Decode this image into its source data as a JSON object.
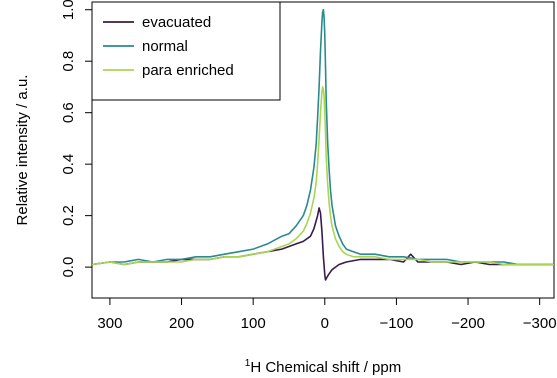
{
  "chart_data": {
    "type": "line",
    "xlabel_super": "1",
    "xlabel": "H Chemical shift / ppm",
    "ylabel": "Relative intensity / a.u.",
    "xlim": [
      325,
      -320
    ],
    "ylim": [
      -0.12,
      1.03
    ],
    "x_reversed": true,
    "grid": false,
    "legend_position": "top-left",
    "x_ticks": [
      {
        "value": 300,
        "label": "300"
      },
      {
        "value": 200,
        "label": "200"
      },
      {
        "value": 100,
        "label": "100"
      },
      {
        "value": 0,
        "label": "0"
      },
      {
        "value": -100,
        "label": "−100"
      },
      {
        "value": -200,
        "label": "−200"
      },
      {
        "value": -300,
        "label": "−300"
      }
    ],
    "y_ticks": [
      {
        "value": 0.0,
        "label": "0.0"
      },
      {
        "value": 0.2,
        "label": "0.2"
      },
      {
        "value": 0.4,
        "label": "0.4"
      },
      {
        "value": 0.6,
        "label": "0.6"
      },
      {
        "value": 0.8,
        "label": "0.8"
      },
      {
        "value": 1.0,
        "label": "1.0"
      }
    ],
    "series": [
      {
        "name": "evacuated",
        "color": "#3b1a4d",
        "x": [
          325,
          300,
          280,
          260,
          240,
          220,
          200,
          180,
          160,
          140,
          120,
          100,
          80,
          60,
          40,
          30,
          20,
          15,
          10,
          8,
          6,
          4,
          2,
          0,
          -1,
          -3,
          -5,
          -10,
          -15,
          -20,
          -30,
          -50,
          -70,
          -90,
          -110,
          -120,
          -130,
          -150,
          -170,
          -190,
          -210,
          -230,
          -250,
          -270,
          -290,
          -310,
          -320
        ],
        "y": [
          0.01,
          0.02,
          0.01,
          0.02,
          0.02,
          0.02,
          0.03,
          0.03,
          0.03,
          0.04,
          0.04,
          0.05,
          0.06,
          0.07,
          0.09,
          0.1,
          0.12,
          0.15,
          0.2,
          0.23,
          0.21,
          0.14,
          0.04,
          -0.03,
          -0.05,
          -0.04,
          -0.03,
          -0.01,
          0.0,
          0.01,
          0.02,
          0.03,
          0.03,
          0.03,
          0.02,
          0.05,
          0.02,
          0.02,
          0.02,
          0.01,
          0.02,
          0.01,
          0.01,
          0.01,
          0.01,
          0.01,
          0.01
        ]
      },
      {
        "name": "normal",
        "color": "#2a8a8e",
        "x": [
          325,
          300,
          280,
          260,
          240,
          220,
          200,
          180,
          160,
          140,
          120,
          100,
          80,
          60,
          50,
          40,
          30,
          25,
          20,
          15,
          12,
          10,
          8,
          6,
          4,
          3,
          2,
          1,
          0,
          -1,
          -2,
          -4,
          -6,
          -8,
          -10,
          -15,
          -20,
          -25,
          -30,
          -40,
          -50,
          -70,
          -90,
          -110,
          -130,
          -150,
          -170,
          -190,
          -210,
          -230,
          -250,
          -270,
          -290,
          -310,
          -320
        ],
        "y": [
          0.01,
          0.02,
          0.02,
          0.03,
          0.02,
          0.03,
          0.03,
          0.04,
          0.04,
          0.05,
          0.06,
          0.07,
          0.09,
          0.12,
          0.13,
          0.16,
          0.2,
          0.24,
          0.3,
          0.39,
          0.48,
          0.58,
          0.7,
          0.84,
          0.95,
          0.99,
          1.0,
          0.97,
          0.9,
          0.78,
          0.65,
          0.48,
          0.38,
          0.3,
          0.24,
          0.16,
          0.12,
          0.09,
          0.07,
          0.06,
          0.05,
          0.05,
          0.04,
          0.04,
          0.03,
          0.03,
          0.03,
          0.02,
          0.02,
          0.02,
          0.02,
          0.01,
          0.01,
          0.01,
          0.01
        ]
      },
      {
        "name": "para enriched",
        "color": "#a9d651",
        "x": [
          325,
          300,
          280,
          260,
          240,
          220,
          200,
          180,
          160,
          140,
          120,
          100,
          80,
          60,
          50,
          40,
          30,
          25,
          20,
          15,
          12,
          10,
          8,
          6,
          4,
          3,
          2,
          1,
          0,
          -1,
          -2,
          -4,
          -6,
          -8,
          -10,
          -15,
          -20,
          -25,
          -30,
          -40,
          -50,
          -70,
          -90,
          -110,
          -130,
          -150,
          -170,
          -190,
          -210,
          -230,
          -250,
          -270,
          -290,
          -310,
          -320
        ],
        "y": [
          0.01,
          0.02,
          0.01,
          0.02,
          0.02,
          0.02,
          0.02,
          0.03,
          0.03,
          0.04,
          0.04,
          0.05,
          0.06,
          0.08,
          0.09,
          0.11,
          0.14,
          0.17,
          0.21,
          0.27,
          0.33,
          0.4,
          0.5,
          0.6,
          0.68,
          0.7,
          0.69,
          0.66,
          0.6,
          0.52,
          0.43,
          0.32,
          0.25,
          0.2,
          0.16,
          0.11,
          0.08,
          0.06,
          0.05,
          0.04,
          0.04,
          0.04,
          0.03,
          0.03,
          0.03,
          0.02,
          0.02,
          0.02,
          0.02,
          0.02,
          0.01,
          0.01,
          0.01,
          0.01,
          0.01
        ]
      }
    ]
  }
}
